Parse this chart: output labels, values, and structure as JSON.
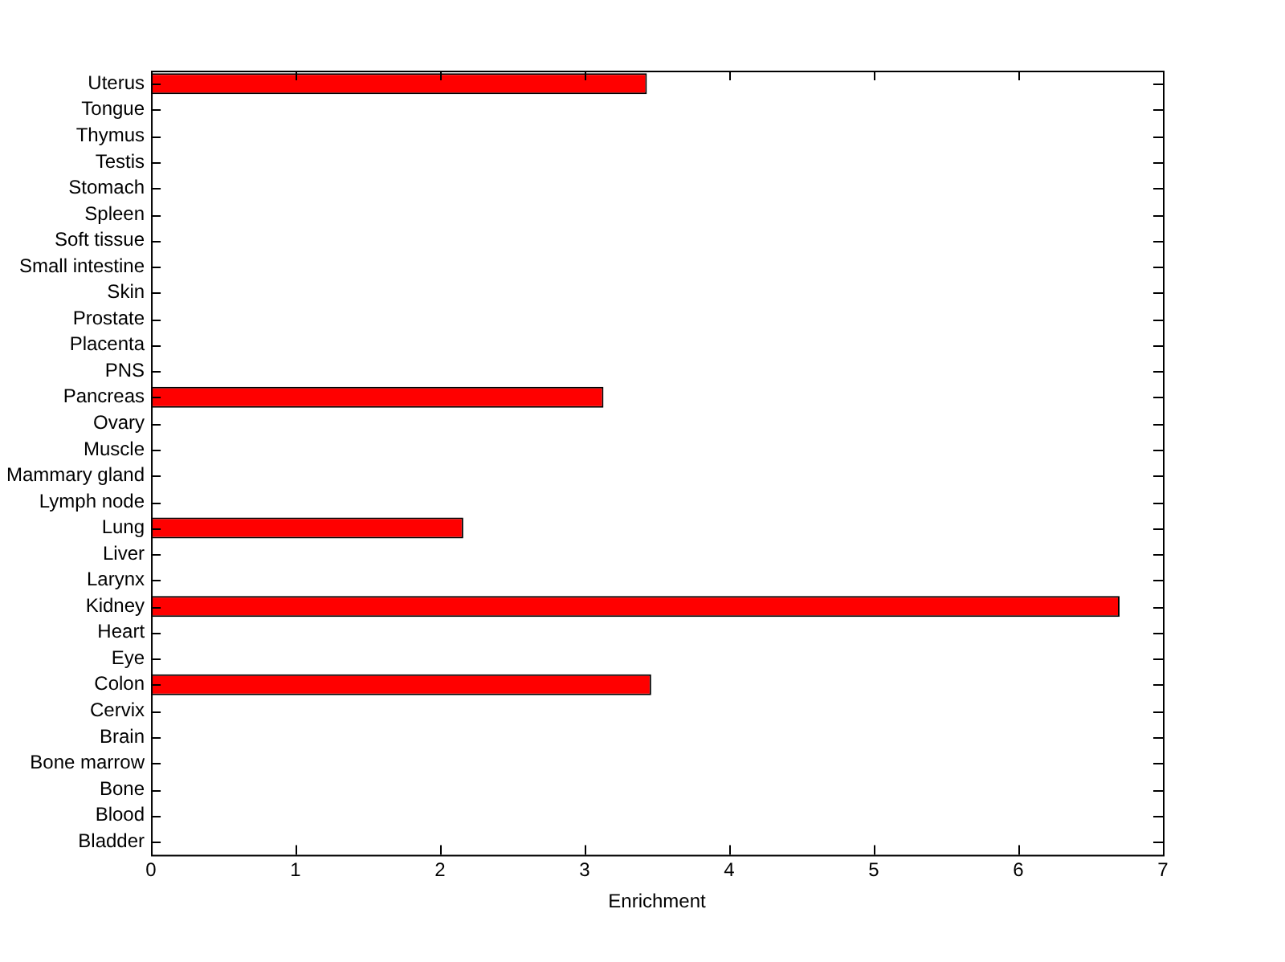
{
  "chart_data": {
    "type": "bar",
    "orientation": "horizontal",
    "xlabel": "Enrichment",
    "categories": [
      "Uterus",
      "Tongue",
      "Thymus",
      "Testis",
      "Stomach",
      "Spleen",
      "Soft tissue",
      "Small intestine",
      "Skin",
      "Prostate",
      "Placenta",
      "PNS",
      "Pancreas",
      "Ovary",
      "Muscle",
      "Mammary gland",
      "Lymph node",
      "Lung",
      "Liver",
      "Larynx",
      "Kidney",
      "Heart",
      "Eye",
      "Colon",
      "Cervix",
      "Brain",
      "Bone marrow",
      "Bone",
      "Blood",
      "Bladder"
    ],
    "values": [
      3.43,
      0,
      0,
      0,
      0,
      0,
      0,
      0,
      0,
      0,
      0,
      0,
      3.13,
      0,
      0,
      0,
      0,
      2.16,
      0,
      0,
      6.7,
      0,
      0,
      3.46,
      0,
      0,
      0,
      0,
      0,
      0
    ],
    "color": "#ff0000",
    "xlim": [
      0,
      7
    ],
    "xticks": [
      0,
      1,
      2,
      3,
      4,
      5,
      6,
      7
    ],
    "grid": false,
    "legend": false
  }
}
